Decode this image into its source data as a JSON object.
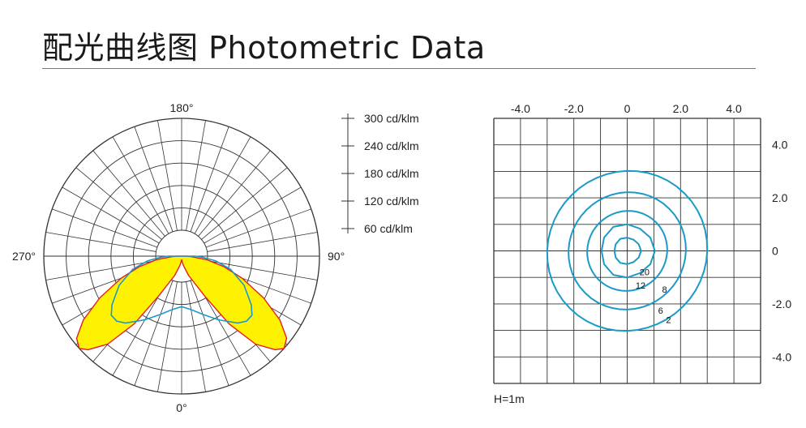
{
  "header": {
    "title": "配光曲线图  Photometric Data"
  },
  "chart_data": [
    {
      "type": "polar",
      "angle_labels": {
        "top": "180°",
        "right": "90°",
        "bottom": "0°",
        "left": "270°"
      },
      "radial_scale_labels": [
        "300 cd/klm",
        "240 cd/klm",
        "180 cd/klm",
        "120 cd/klm",
        "60 cd/klm"
      ],
      "radial_max": 300,
      "series": [
        {
          "color": "#e41e1e",
          "fill": "#fff200",
          "curve": [
            [
              0,
              8
            ],
            [
              10,
              20
            ],
            [
              20,
              45
            ],
            [
              30,
              100
            ],
            [
              35,
              180
            ],
            [
              40,
              250
            ],
            [
              45,
              288
            ],
            [
              48,
              300
            ],
            [
              52,
              290
            ],
            [
              57,
              255
            ],
            [
              63,
              200
            ],
            [
              70,
              140
            ],
            [
              76,
              95
            ],
            [
              82,
              55
            ],
            [
              87,
              22
            ],
            [
              90,
              10
            ]
          ]
        },
        {
          "color": "#1a9ac9",
          "curve": [
            [
              0,
              110
            ],
            [
              10,
              118
            ],
            [
              20,
              135
            ],
            [
              30,
              160
            ],
            [
              40,
              190
            ],
            [
              45,
              200
            ],
            [
              50,
              200
            ],
            [
              55,
              185
            ],
            [
              65,
              150
            ],
            [
              75,
              110
            ],
            [
              82,
              75
            ],
            [
              87,
              45
            ],
            [
              90,
              30
            ]
          ]
        }
      ]
    },
    {
      "type": "contour",
      "x_ticks": [
        "-4.0",
        "-2.0",
        "0",
        "2.0",
        "4.0"
      ],
      "y_ticks": [
        "4.0",
        "2.0",
        "0",
        "-2.0",
        "-4.0"
      ],
      "xlim": [
        -5,
        5
      ],
      "ylim": [
        -5,
        5
      ],
      "note": "H=1m",
      "contour_color": "#1a9ac9",
      "contours": [
        {
          "level": "2",
          "radius": 3.0
        },
        {
          "level": "6",
          "radius": 2.2
        },
        {
          "level": "8",
          "radius": 1.5
        },
        {
          "level": "12",
          "radius": 1.0
        },
        {
          "level": "20",
          "radius": 0.5
        }
      ]
    }
  ]
}
